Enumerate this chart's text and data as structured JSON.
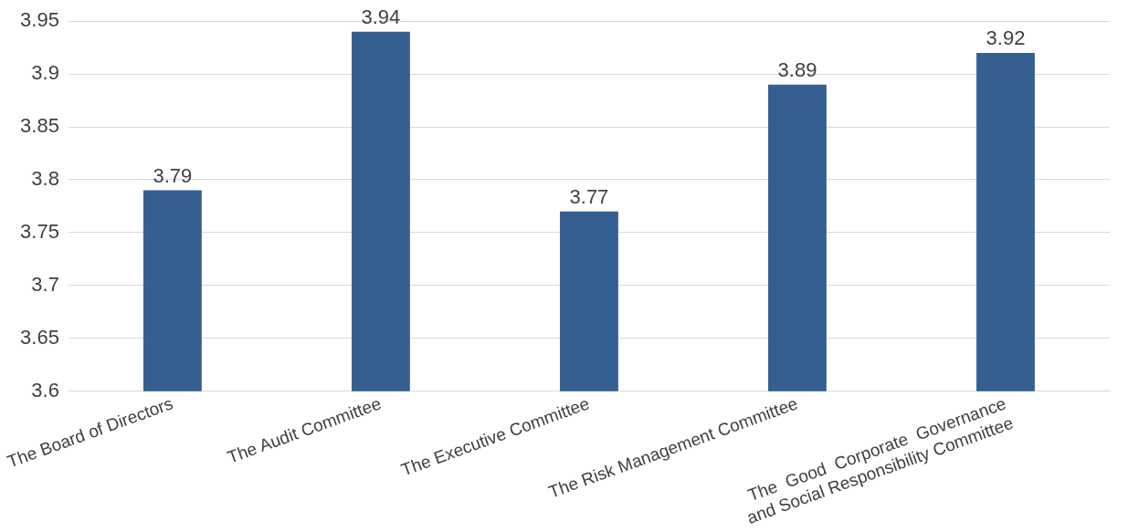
{
  "chart_data": {
    "type": "bar",
    "categories": [
      "The Board of Directors",
      "The Audit Committee",
      "The Executive Committee",
      "The Risk Management Committee",
      "The  Good  Corporate  Governance\nand Social Responsibility Committee"
    ],
    "values": [
      3.79,
      3.94,
      3.77,
      3.89,
      3.92
    ],
    "color": "#355f91",
    "ylim": [
      3.6,
      3.95
    ],
    "yticks": [
      3.6,
      3.65,
      3.7,
      3.75,
      3.8,
      3.85,
      3.9,
      3.95
    ],
    "grid": "y",
    "legend": false,
    "data_labels": true
  }
}
